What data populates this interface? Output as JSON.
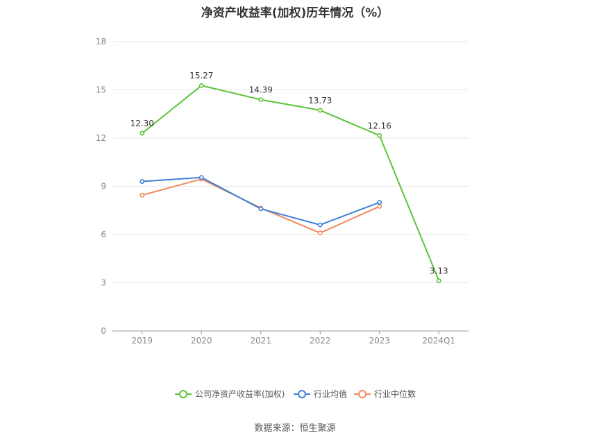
{
  "chart_data": {
    "type": "line",
    "title": "净资产收益率(加权)历年情况（%）",
    "categories": [
      "2019",
      "2020",
      "2021",
      "2022",
      "2023",
      "2024Q1"
    ],
    "ylim": [
      0,
      18
    ],
    "yticks": [
      0,
      3,
      6,
      9,
      12,
      15,
      18
    ],
    "grid": true,
    "legend_position": "bottom",
    "series": [
      {
        "name": "公司净资产收益率(加权)",
        "color": "#5cc43a",
        "values": [
          12.3,
          15.27,
          14.39,
          13.73,
          12.16,
          3.13
        ],
        "labels": [
          "12.30",
          "15.27",
          "14.39",
          "13.73",
          "12.16",
          "3.13"
        ]
      },
      {
        "name": "行业均值",
        "color": "#3f7fd9",
        "values": [
          9.3,
          9.55,
          7.6,
          6.6,
          8.0,
          null
        ]
      },
      {
        "name": "行业中位数",
        "color": "#f08a5d",
        "values": [
          8.45,
          9.45,
          7.65,
          6.1,
          7.75,
          null
        ]
      }
    ]
  },
  "source": "数据来源：恒生聚源"
}
